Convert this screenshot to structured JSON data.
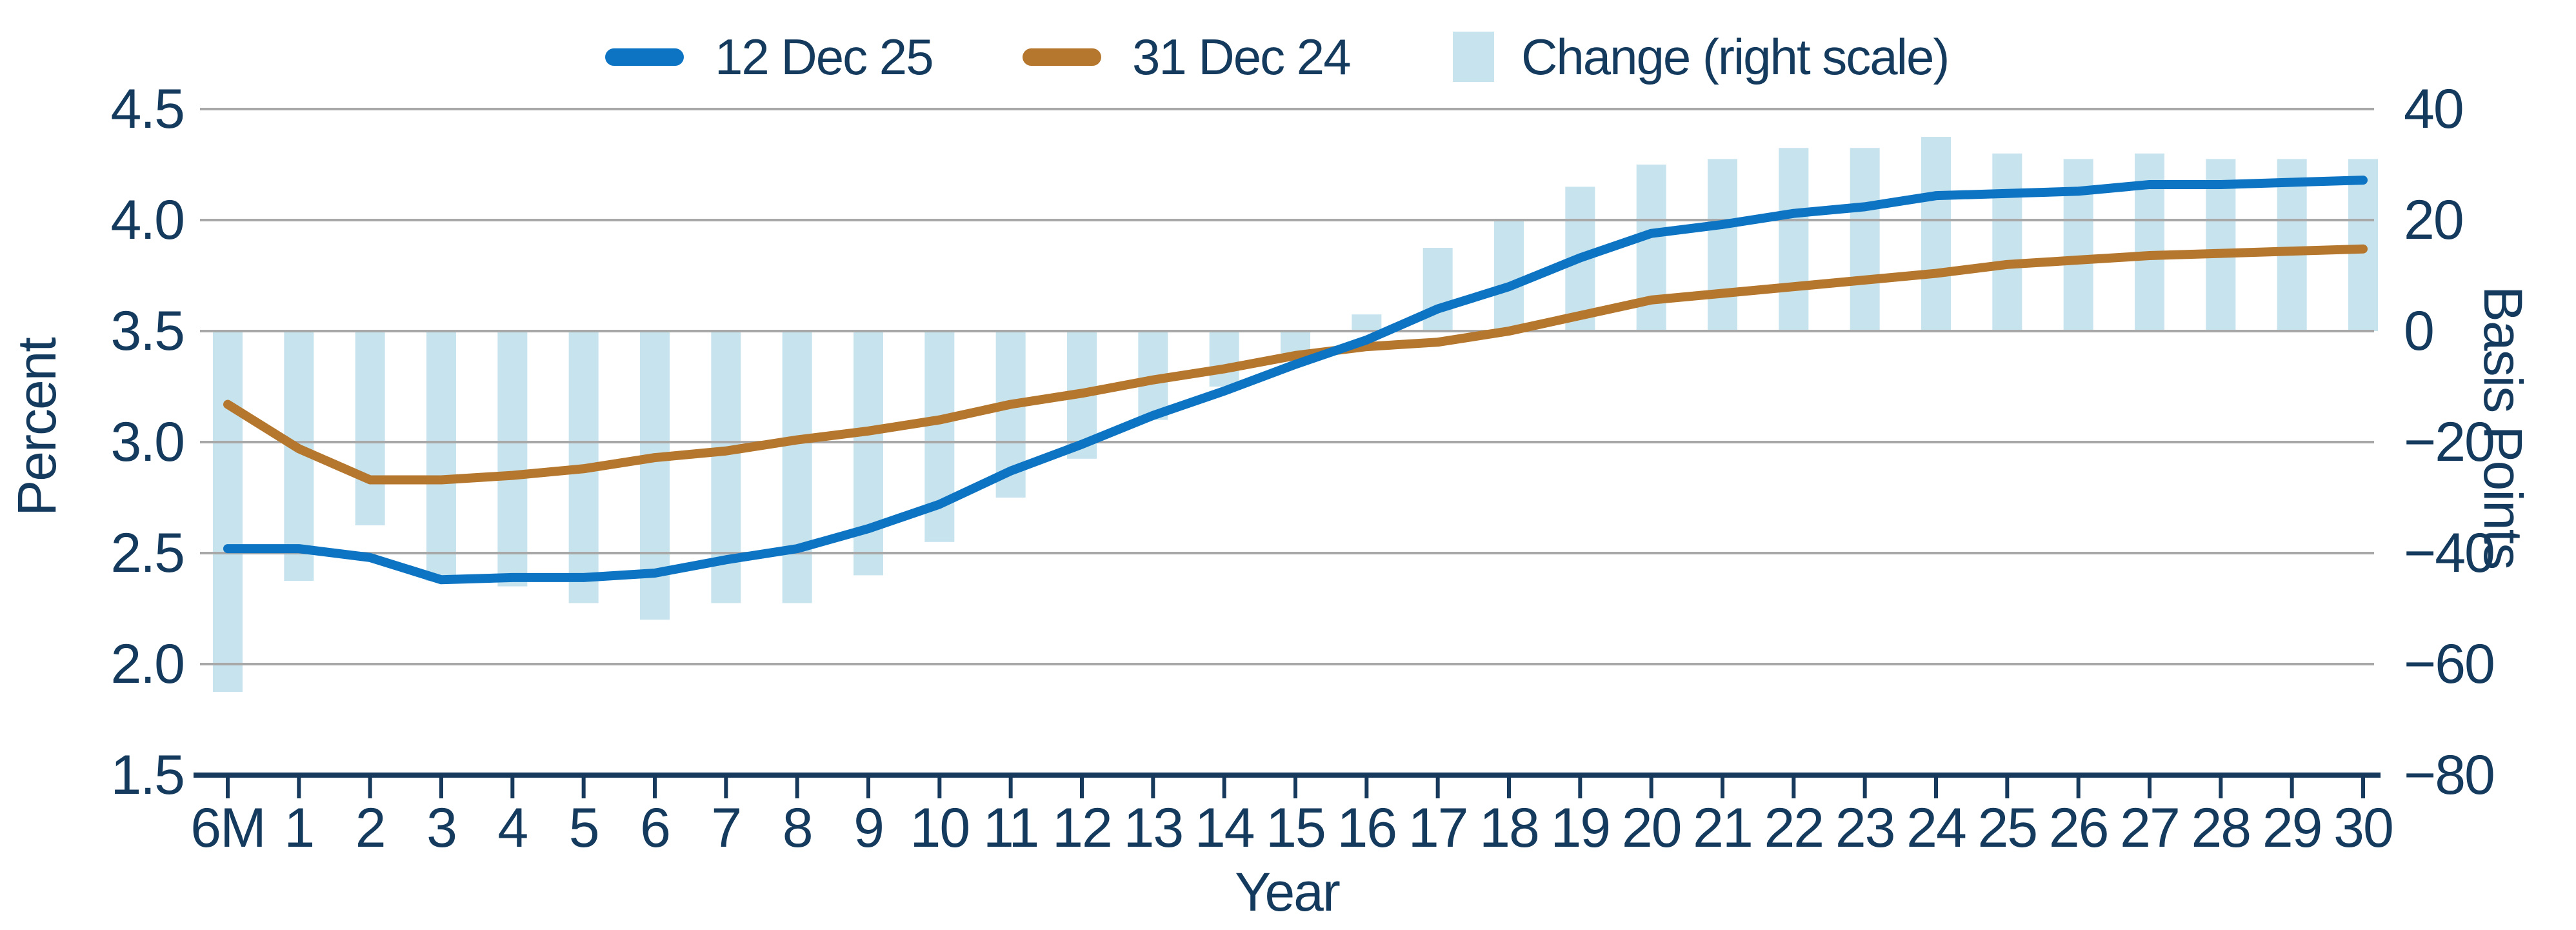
{
  "chart_data": {
    "type": "combo",
    "title": "",
    "categories": [
      "6M",
      "1",
      "2",
      "3",
      "4",
      "5",
      "6",
      "7",
      "8",
      "9",
      "10",
      "11",
      "12",
      "13",
      "14",
      "15",
      "16",
      "17",
      "18",
      "19",
      "20",
      "21",
      "22",
      "23",
      "24",
      "25",
      "26",
      "27",
      "28",
      "29",
      "30"
    ],
    "series": [
      {
        "name": "12 Dec 25",
        "type": "line",
        "axis": "left",
        "color": "#0d74c4",
        "values": [
          2.52,
          2.52,
          2.48,
          2.38,
          2.39,
          2.39,
          2.41,
          2.47,
          2.52,
          2.61,
          2.72,
          2.87,
          2.99,
          3.12,
          3.23,
          3.35,
          3.46,
          3.6,
          3.7,
          3.83,
          3.94,
          3.98,
          4.03,
          4.06,
          4.11,
          4.12,
          4.13,
          4.16,
          4.16,
          4.17,
          4.18
        ]
      },
      {
        "name": "31 Dec 24",
        "type": "line",
        "axis": "left",
        "color": "#b5772d",
        "values": [
          3.17,
          2.97,
          2.83,
          2.83,
          2.85,
          2.88,
          2.93,
          2.96,
          3.01,
          3.05,
          3.1,
          3.17,
          3.22,
          3.28,
          3.33,
          3.39,
          3.43,
          3.45,
          3.5,
          3.57,
          3.64,
          3.67,
          3.7,
          3.73,
          3.76,
          3.8,
          3.82,
          3.84,
          3.85,
          3.86,
          3.87
        ]
      },
      {
        "name": "Change (right scale)",
        "type": "bar",
        "axis": "right",
        "color": "#c7e3ee",
        "values": [
          -65,
          -45,
          -35,
          -45,
          -46,
          -49,
          -52,
          -49,
          -49,
          -44,
          -38,
          -30,
          -23,
          -16,
          -10,
          -4,
          3,
          15,
          20,
          26,
          30,
          31,
          33,
          33,
          35,
          32,
          31,
          32,
          31,
          31,
          31
        ]
      }
    ],
    "axes": {
      "left": {
        "title": "Percent",
        "min": 1.5,
        "max": 4.5,
        "tick_labels": [
          "4.5",
          "4.0",
          "3.5",
          "3.0",
          "2.5",
          "2.0",
          "1.5"
        ],
        "tick_values": [
          4.5,
          4.0,
          3.5,
          3.0,
          2.5,
          2.0,
          1.5
        ]
      },
      "right": {
        "title": "Basis Points",
        "min": -80,
        "max": 40,
        "tick_labels": [
          "40",
          "20",
          "0",
          "−20",
          "−40",
          "−60",
          "−80"
        ],
        "tick_values": [
          40,
          20,
          0,
          -20,
          -40,
          -60,
          -80
        ]
      },
      "x": {
        "title": "Year"
      }
    },
    "legend_position": "top",
    "grid": true
  },
  "colors": {
    "text": "#143a5e",
    "gridline": "#a8a8a8",
    "axis_line": "#16395c",
    "background": "#ffffff",
    "line_12dec25": "#0d74c4",
    "line_31dec24": "#b5772d",
    "bar_change": "#c7e3ee"
  }
}
